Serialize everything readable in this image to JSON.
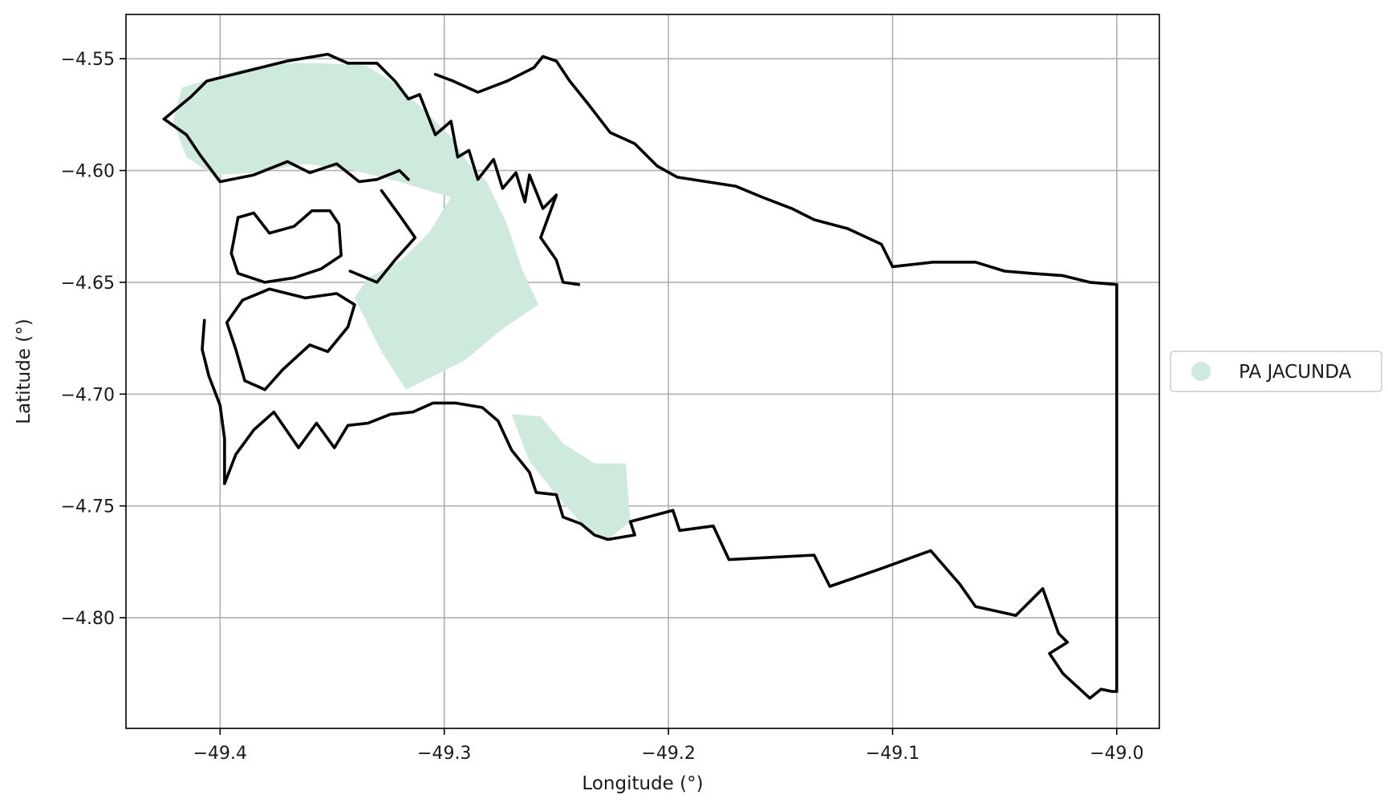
{
  "axes": {
    "xlabel": "Longitude (°)",
    "ylabel": "Latitude (°)",
    "xlim": [
      -49.442,
      -48.981
    ],
    "ylim": [
      -4.8495,
      -4.5302
    ],
    "xticks": [
      {
        "value": -49.4,
        "label": "−49.4"
      },
      {
        "value": -49.3,
        "label": "−49.3"
      },
      {
        "value": -49.2,
        "label": "−49.2"
      },
      {
        "value": -49.1,
        "label": "−49.1"
      },
      {
        "value": -49.0,
        "label": "−49.0"
      }
    ],
    "yticks": [
      {
        "value": -4.55,
        "label": "−4.55"
      },
      {
        "value": -4.6,
        "label": "−4.60"
      },
      {
        "value": -4.65,
        "label": "−4.65"
      },
      {
        "value": -4.7,
        "label": "−4.70"
      },
      {
        "value": -4.75,
        "label": "−4.75"
      },
      {
        "value": -4.8,
        "label": "−4.80"
      }
    ],
    "grid": true
  },
  "legend": {
    "placement": "right (outside axes)",
    "entries": [
      {
        "label": "PA JACUNDA",
        "color": "#cdeadd"
      }
    ]
  },
  "map": {
    "settlement_fill_color": "#cdeadd",
    "boundary_color": "#000000",
    "settlement_polygons": [
      [
        [
          -49.417,
          -4.563
        ],
        [
          -49.395,
          -4.556
        ],
        [
          -49.375,
          -4.552
        ],
        [
          -49.355,
          -4.552
        ],
        [
          -49.335,
          -4.553
        ],
        [
          -49.322,
          -4.561
        ],
        [
          -49.309,
          -4.573
        ],
        [
          -49.297,
          -4.585
        ],
        [
          -49.289,
          -4.597
        ],
        [
          -49.281,
          -4.605
        ],
        [
          -49.272,
          -4.624
        ],
        [
          -49.265,
          -4.645
        ],
        [
          -49.258,
          -4.66
        ],
        [
          -49.273,
          -4.67
        ],
        [
          -49.291,
          -4.685
        ],
        [
          -49.317,
          -4.698
        ],
        [
          -49.328,
          -4.681
        ],
        [
          -49.34,
          -4.657
        ],
        [
          -49.334,
          -4.648
        ],
        [
          -49.319,
          -4.64
        ],
        [
          -49.307,
          -4.628
        ],
        [
          -49.297,
          -4.612
        ],
        [
          -49.32,
          -4.605
        ],
        [
          -49.34,
          -4.6
        ],
        [
          -49.362,
          -4.597
        ],
        [
          -49.384,
          -4.601
        ],
        [
          -49.403,
          -4.602
        ],
        [
          -49.415,
          -4.594
        ],
        [
          -49.421,
          -4.578
        ]
      ],
      [
        [
          -49.27,
          -4.709
        ],
        [
          -49.257,
          -4.71
        ],
        [
          -49.247,
          -4.722
        ],
        [
          -49.233,
          -4.731
        ],
        [
          -49.219,
          -4.731
        ],
        [
          -49.217,
          -4.757
        ],
        [
          -49.227,
          -4.765
        ],
        [
          -49.237,
          -4.76
        ],
        [
          -49.25,
          -4.745
        ],
        [
          -49.262,
          -4.73
        ]
      ]
    ],
    "boundary_paths": [
      [
        [
          -49.425,
          -4.577
        ],
        [
          -49.413,
          -4.567
        ],
        [
          -49.406,
          -4.56
        ],
        [
          -49.39,
          -4.556
        ],
        [
          -49.37,
          -4.551
        ],
        [
          -49.352,
          -4.548
        ],
        [
          -49.343,
          -4.552
        ],
        [
          -49.33,
          -4.552
        ],
        [
          -49.322,
          -4.56
        ],
        [
          -49.316,
          -4.568
        ],
        [
          -49.311,
          -4.566
        ],
        [
          -49.304,
          -4.584
        ],
        [
          -49.297,
          -4.578
        ],
        [
          -49.294,
          -4.594
        ],
        [
          -49.289,
          -4.591
        ],
        [
          -49.285,
          -4.604
        ],
        [
          -49.278,
          -4.595
        ],
        [
          -49.274,
          -4.608
        ],
        [
          -49.268,
          -4.601
        ],
        [
          -49.264,
          -4.614
        ],
        [
          -49.262,
          -4.602
        ],
        [
          -49.256,
          -4.617
        ],
        [
          -49.25,
          -4.611
        ],
        [
          -49.257,
          -4.63
        ],
        [
          -49.25,
          -4.64
        ],
        [
          -49.247,
          -4.65
        ],
        [
          -49.24,
          -4.651
        ]
      ],
      [
        [
          -49.425,
          -4.577
        ],
        [
          -49.415,
          -4.584
        ],
        [
          -49.409,
          -4.593
        ],
        [
          -49.4,
          -4.605
        ],
        [
          -49.385,
          -4.602
        ],
        [
          -49.37,
          -4.596
        ],
        [
          -49.36,
          -4.601
        ],
        [
          -49.348,
          -4.597
        ],
        [
          -49.338,
          -4.605
        ],
        [
          -49.33,
          -4.604
        ],
        [
          -49.32,
          -4.6
        ],
        [
          -49.316,
          -4.604
        ]
      ],
      [
        [
          -49.392,
          -4.621
        ],
        [
          -49.385,
          -4.619
        ],
        [
          -49.378,
          -4.628
        ],
        [
          -49.367,
          -4.625
        ],
        [
          -49.359,
          -4.618
        ],
        [
          -49.351,
          -4.618
        ],
        [
          -49.347,
          -4.624
        ],
        [
          -49.346,
          -4.638
        ],
        [
          -49.355,
          -4.644
        ],
        [
          -49.367,
          -4.648
        ],
        [
          -49.38,
          -4.65
        ],
        [
          -49.392,
          -4.646
        ],
        [
          -49.395,
          -4.637
        ],
        [
          -49.392,
          -4.621
        ]
      ],
      [
        [
          -49.328,
          -4.609
        ],
        [
          -49.32,
          -4.62
        ],
        [
          -49.313,
          -4.63
        ],
        [
          -49.322,
          -4.64
        ],
        [
          -49.33,
          -4.65
        ],
        [
          -49.342,
          -4.645
        ]
      ],
      [
        [
          -49.39,
          -4.658
        ],
        [
          -49.378,
          -4.653
        ],
        [
          -49.362,
          -4.657
        ],
        [
          -49.348,
          -4.655
        ],
        [
          -49.34,
          -4.66
        ],
        [
          -49.343,
          -4.67
        ],
        [
          -49.352,
          -4.681
        ],
        [
          -49.36,
          -4.678
        ],
        [
          -49.372,
          -4.689
        ],
        [
          -49.38,
          -4.698
        ],
        [
          -49.389,
          -4.694
        ],
        [
          -49.393,
          -4.68
        ],
        [
          -49.397,
          -4.668
        ],
        [
          -49.39,
          -4.658
        ]
      ],
      [
        [
          -49.407,
          -4.667
        ],
        [
          -49.408,
          -4.68
        ],
        [
          -49.405,
          -4.692
        ],
        [
          -49.4,
          -4.705
        ],
        [
          -49.398,
          -4.72
        ],
        [
          -49.398,
          -4.733
        ],
        [
          -49.398,
          -4.74
        ]
      ],
      [
        [
          -49.398,
          -4.74
        ],
        [
          -49.393,
          -4.727
        ],
        [
          -49.385,
          -4.716
        ],
        [
          -49.376,
          -4.708
        ],
        [
          -49.365,
          -4.724
        ],
        [
          -49.357,
          -4.713
        ],
        [
          -49.349,
          -4.724
        ],
        [
          -49.343,
          -4.714
        ],
        [
          -49.334,
          -4.713
        ],
        [
          -49.324,
          -4.709
        ],
        [
          -49.314,
          -4.708
        ],
        [
          -49.305,
          -4.704
        ],
        [
          -49.295,
          -4.704
        ],
        [
          -49.283,
          -4.706
        ],
        [
          -49.276,
          -4.712
        ],
        [
          -49.27,
          -4.725
        ],
        [
          -49.262,
          -4.735
        ],
        [
          -49.259,
          -4.744
        ],
        [
          -49.25,
          -4.745
        ],
        [
          -49.247,
          -4.755
        ],
        [
          -49.239,
          -4.758
        ],
        [
          -49.233,
          -4.763
        ],
        [
          -49.227,
          -4.765
        ],
        [
          -49.215,
          -4.763
        ],
        [
          -49.217,
          -4.757
        ],
        [
          -49.198,
          -4.752
        ],
        [
          -49.195,
          -4.761
        ],
        [
          -49.18,
          -4.759
        ],
        [
          -49.173,
          -4.774
        ],
        [
          -49.135,
          -4.772
        ],
        [
          -49.128,
          -4.786
        ],
        [
          -49.105,
          -4.778
        ],
        [
          -49.083,
          -4.77
        ],
        [
          -49.07,
          -4.785
        ],
        [
          -49.063,
          -4.795
        ],
        [
          -49.045,
          -4.799
        ],
        [
          -49.033,
          -4.787
        ],
        [
          -49.026,
          -4.807
        ],
        [
          -49.022,
          -4.811
        ],
        [
          -49.03,
          -4.816
        ],
        [
          -49.024,
          -4.825
        ],
        [
          -49.012,
          -4.836
        ],
        [
          -49.007,
          -4.832
        ],
        [
          -49.002,
          -4.833
        ],
        [
          -49.0,
          -4.833
        ],
        [
          -49.0,
          -4.651
        ]
      ],
      [
        [
          -49.0,
          -4.651
        ],
        [
          -49.012,
          -4.65
        ],
        [
          -49.024,
          -4.647
        ],
        [
          -49.038,
          -4.646
        ],
        [
          -49.05,
          -4.645
        ],
        [
          -49.063,
          -4.641
        ],
        [
          -49.082,
          -4.641
        ],
        [
          -49.1,
          -4.643
        ],
        [
          -49.105,
          -4.633
        ],
        [
          -49.12,
          -4.626
        ],
        [
          -49.135,
          -4.622
        ],
        [
          -49.145,
          -4.617
        ],
        [
          -49.158,
          -4.612
        ],
        [
          -49.17,
          -4.607
        ],
        [
          -49.183,
          -4.605
        ],
        [
          -49.196,
          -4.603
        ],
        [
          -49.205,
          -4.598
        ],
        [
          -49.215,
          -4.588
        ],
        [
          -49.226,
          -4.583
        ],
        [
          -49.236,
          -4.57
        ],
        [
          -49.244,
          -4.56
        ],
        [
          -49.25,
          -4.551
        ],
        [
          -49.256,
          -4.549
        ],
        [
          -49.26,
          -4.554
        ],
        [
          -49.272,
          -4.56
        ],
        [
          -49.285,
          -4.565
        ],
        [
          -49.296,
          -4.56
        ],
        [
          -49.304,
          -4.557
        ]
      ]
    ]
  }
}
